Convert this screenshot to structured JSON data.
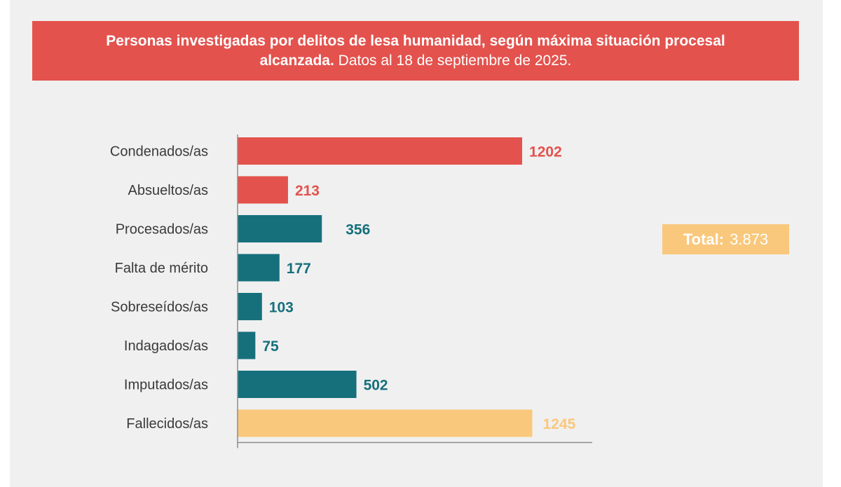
{
  "header": {
    "title_bold": "Personas investigadas por delitos de lesa humanidad, según máxima situación procesal alcanzada.",
    "title_light": "Datos al 18 de septiembre de 2025."
  },
  "total": {
    "label": "Total:",
    "value": "3.873"
  },
  "colors": {
    "red": "#e3524d",
    "teal": "#16707c",
    "yellow": "#f9c87c",
    "axis": "#8c8c8c"
  },
  "chart_data": {
    "type": "bar",
    "orientation": "horizontal",
    "categories": [
      "Condenados/as",
      "Absueltos/as",
      "Procesados/as",
      "Falta de mérito",
      "Sobreseídos/as",
      "Indagados/as",
      "Imputados/as",
      "Fallecidos/as"
    ],
    "values": [
      1202,
      213,
      356,
      177,
      103,
      75,
      502,
      1245
    ],
    "value_labels": [
      "1202",
      "213",
      "356",
      "177",
      "103",
      "75",
      "502",
      "1245"
    ],
    "bar_colors": [
      "#e3524d",
      "#e3524d",
      "#16707c",
      "#16707c",
      "#16707c",
      "#16707c",
      "#16707c",
      "#f9c87c"
    ],
    "xlim": [
      0,
      1500
    ],
    "grid": false
  }
}
